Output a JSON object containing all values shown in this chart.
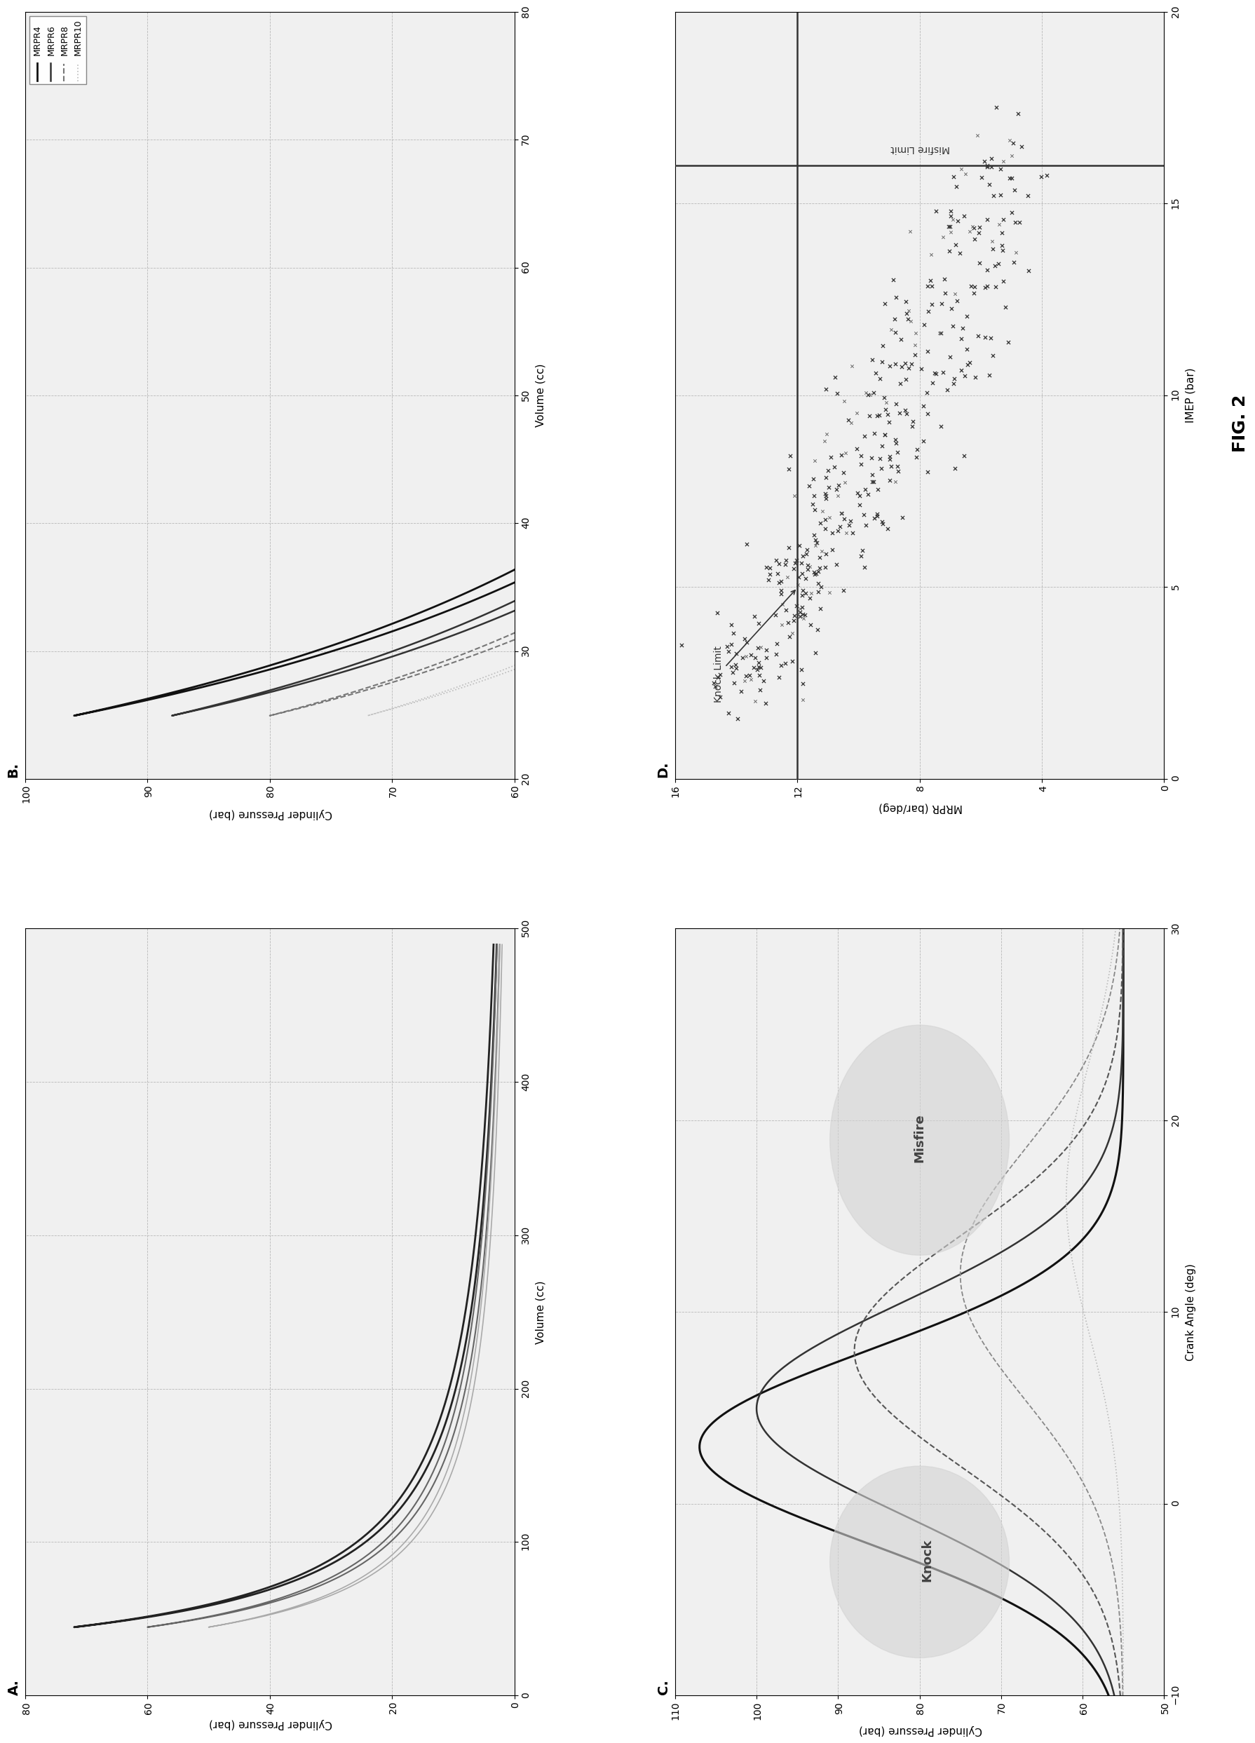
{
  "fig_width": 19.11,
  "fig_height": 26.68,
  "background_color": "#ffffff",
  "panel_A": {
    "title": "A.",
    "xlabel": "Volume (cc)",
    "ylabel": "Cylinder Pressure (bar)",
    "xlim": [
      0,
      500
    ],
    "ylim": [
      0,
      80
    ],
    "xticks": [
      0,
      100,
      200,
      300,
      400,
      500
    ],
    "yticks": [
      0,
      20,
      40,
      60,
      80
    ]
  },
  "panel_B": {
    "title": "B.",
    "xlabel": "Volume (cc)",
    "ylabel": "Cylinder Pressure (bar)",
    "xlim": [
      20,
      80
    ],
    "ylim": [
      60,
      100
    ],
    "xticks": [
      20,
      30,
      40,
      50,
      60,
      70,
      80
    ],
    "yticks": [
      60,
      70,
      80,
      90,
      100
    ],
    "legend_labels": [
      "MRPR4",
      "MRPR6",
      "MRPR8",
      "MRPR10"
    ]
  },
  "panel_C": {
    "title": "C.",
    "xlabel": "Crank Angle (deg)",
    "ylabel": "Cylinder Pressure (bar)",
    "xlim": [
      -10,
      30
    ],
    "ylim": [
      50,
      110
    ],
    "xticks": [
      -10,
      0,
      10,
      20,
      30
    ],
    "yticks": [
      50,
      60,
      70,
      80,
      90,
      100,
      110
    ],
    "knock_label": "Knock",
    "misfire_label": "Misfire"
  },
  "panel_D": {
    "title": "D.",
    "xlabel": "IMEP (bar)",
    "ylabel": "MRPR (bar/deg)",
    "xlim": [
      0,
      20
    ],
    "ylim": [
      0,
      16
    ],
    "xticks": [
      0,
      5,
      10,
      15,
      20
    ],
    "yticks": [
      0,
      4,
      8,
      12,
      16
    ],
    "knock_limit_y": 12,
    "misfire_limit_x": 16,
    "knock_label": "Knock Limit",
    "misfire_label": "Misfire Limit"
  },
  "fig2_label": "FIG. 2"
}
